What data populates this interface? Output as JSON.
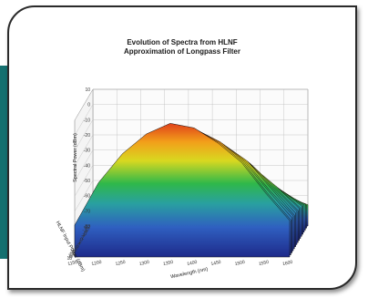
{
  "chart_data": {
    "type": "area",
    "title": "Evolution of Spectra from HLNF",
    "subtitle": "Approximation of Longpass Filter",
    "xlabel": "Wavelength (nm)",
    "ylabel": "Spectral Power (dBm)",
    "zlabel": "HLNF Input Power (dBm)",
    "x_ticks": [
      "1150",
      "1200",
      "1250",
      "1300",
      "1350",
      "1400",
      "1450",
      "1500",
      "1550",
      "1600"
    ],
    "y_ticks": [
      "-80",
      "-70",
      "-60",
      "-50",
      "-40",
      "-30",
      "-20",
      "-10",
      "0",
      "10"
    ],
    "z_ticks": [
      "-12",
      "-10",
      "-8",
      "-6",
      "-4",
      "-2",
      "0",
      "2",
      "4",
      "6",
      "8",
      "10",
      "12",
      "14",
      "16",
      "18"
    ],
    "xlim": [
      1150,
      1600
    ],
    "ylim": [
      -80,
      10
    ],
    "grid": true,
    "colormap": [
      "#1e2a8a",
      "#2f5fc0",
      "#29a0a0",
      "#2fb84a",
      "#d8d820",
      "#f2a01a",
      "#e0401a"
    ],
    "series": [
      {
        "values": [
          -78,
          -75,
          -70,
          -65,
          -60,
          -58,
          -56,
          -57,
          -60,
          -66
        ]
      },
      {
        "values": [
          -76,
          -72,
          -66,
          -60,
          -56,
          -53,
          -52,
          -54,
          -58,
          -65
        ]
      },
      {
        "values": [
          -74,
          -70,
          -62,
          -55,
          -50,
          -48,
          -47,
          -50,
          -55,
          -63
        ]
      },
      {
        "values": [
          -72,
          -67,
          -58,
          -50,
          -45,
          -42,
          -42,
          -46,
          -52,
          -62
        ]
      },
      {
        "values": [
          -70,
          -64,
          -54,
          -45,
          -39,
          -36,
          -37,
          -42,
          -50,
          -61
        ]
      },
      {
        "values": [
          -69,
          -61,
          -50,
          -40,
          -33,
          -30,
          -32,
          -38,
          -48,
          -60
        ]
      },
      {
        "values": [
          -68,
          -58,
          -46,
          -35,
          -27,
          -24,
          -27,
          -34,
          -46,
          -60
        ]
      },
      {
        "values": [
          -67,
          -55,
          -42,
          -30,
          -22,
          -19,
          -23,
          -31,
          -44,
          -59
        ]
      },
      {
        "values": [
          -66,
          -52,
          -38,
          -25,
          -17,
          -15,
          -19,
          -28,
          -43,
          -59
        ]
      },
      {
        "values": [
          -65,
          -49,
          -34,
          -21,
          -12,
          -11,
          -16,
          -26,
          -42,
          -58
        ]
      },
      {
        "values": [
          -64,
          -46,
          -30,
          -17,
          -8,
          -8,
          -13,
          -24,
          -41,
          -58
        ]
      },
      {
        "values": [
          -63,
          -43,
          -26,
          -13,
          -4,
          -5,
          -11,
          -22,
          -40,
          -58
        ]
      },
      {
        "values": [
          -62,
          -40,
          -22,
          -9,
          0,
          -2,
          -9,
          -21,
          -40,
          -57
        ]
      },
      {
        "values": [
          -61,
          -37,
          -18,
          -5,
          3,
          1,
          -7,
          -20,
          -39,
          -57
        ]
      },
      {
        "values": [
          -60,
          -34,
          -15,
          -2,
          6,
          3,
          -6,
          -19,
          -39,
          -57
        ]
      },
      {
        "values": [
          -59,
          -31,
          -12,
          1,
          8,
          5,
          -5,
          -18,
          -38,
          -56
        ]
      }
    ]
  }
}
